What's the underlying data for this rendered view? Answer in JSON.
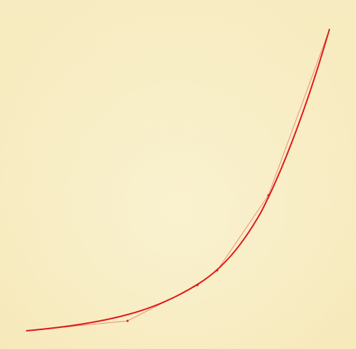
{
  "canvas": {
    "background_top": "#f7ecc1",
    "background_bottom": "#f6e9b9",
    "background_center": "#faf2d2",
    "curve_color": "#e01818",
    "polygon_color": "#ee8c78",
    "point_color": "#e01818"
  }
}
